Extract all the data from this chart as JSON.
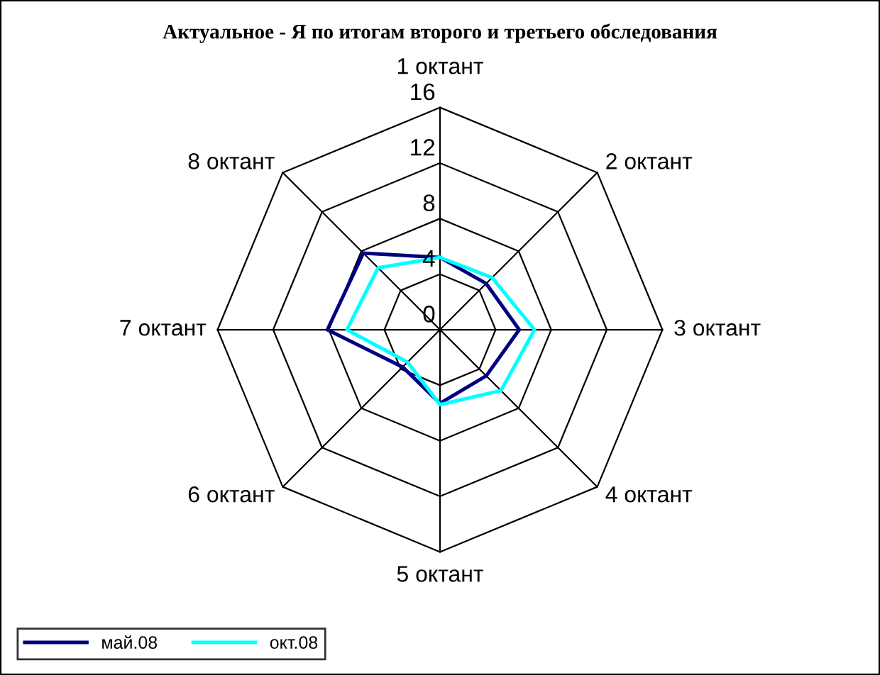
{
  "chart_data": {
    "type": "radar",
    "title": "Актуальное - Я по итогам второго и третьего обследования",
    "categories": [
      "1 октант",
      "2 октант",
      "3 октант",
      "4 октант",
      "5 октант",
      "6 октант",
      "7 октант",
      "8 октант"
    ],
    "series": [
      {
        "name": "май.08",
        "color": "#000080",
        "values": [
          5.2,
          4.7,
          5.7,
          4.7,
          5.3,
          3.8,
          8.1,
          7.8
        ]
      },
      {
        "name": "окт.08",
        "color": "#00ffff",
        "values": [
          5.2,
          5.3,
          6.8,
          6.2,
          5.4,
          3.3,
          6.7,
          6.3
        ]
      }
    ],
    "ylim": [
      0,
      16
    ],
    "yticks": [
      0,
      4,
      8,
      12,
      16
    ],
    "legend": "bottom left",
    "grid": true
  }
}
